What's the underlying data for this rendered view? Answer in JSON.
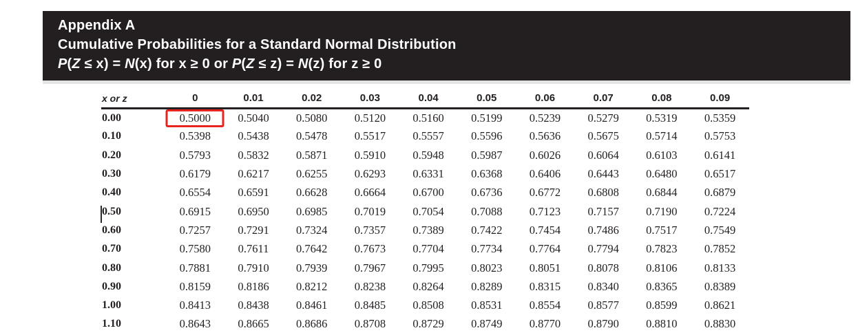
{
  "header": {
    "title": "Appendix A",
    "subtitle": "Cumulative Probabilities for a Standard Normal Distribution",
    "formula_segments": [
      {
        "text": "P",
        "italic": true
      },
      {
        "text": "(",
        "italic": false
      },
      {
        "text": "Z",
        "italic": true
      },
      {
        "text": " ≤ x) = ",
        "italic": false
      },
      {
        "text": "N",
        "italic": true
      },
      {
        "text": "(x) for x ≥ 0 or ",
        "italic": false
      },
      {
        "text": "P",
        "italic": true
      },
      {
        "text": "(",
        "italic": false
      },
      {
        "text": "Z",
        "italic": true
      },
      {
        "text": " ≤ z) = ",
        "italic": false
      },
      {
        "text": "N",
        "italic": true
      },
      {
        "text": "(z) for z ≥ 0",
        "italic": false
      }
    ]
  },
  "colors": {
    "banner_bg": "#231f20",
    "banner_text": "#ffffff",
    "highlight_red": "#e8251d",
    "rule": "#231f20"
  },
  "table": {
    "columns": [
      "x or z",
      "0",
      "0.01",
      "0.02",
      "0.03",
      "0.04",
      "0.05",
      "0.06",
      "0.07",
      "0.08",
      "0.09"
    ],
    "rows": [
      {
        "label": "0.00",
        "values": [
          "0.5000",
          "0.5040",
          "0.5080",
          "0.5120",
          "0.5160",
          "0.5199",
          "0.5239",
          "0.5279",
          "0.5319",
          "0.5359"
        ]
      },
      {
        "label": "0.10",
        "values": [
          "0.5398",
          "0.5438",
          "0.5478",
          "0.5517",
          "0.5557",
          "0.5596",
          "0.5636",
          "0.5675",
          "0.5714",
          "0.5753"
        ]
      },
      {
        "label": "0.20",
        "values": [
          "0.5793",
          "0.5832",
          "0.5871",
          "0.5910",
          "0.5948",
          "0.5987",
          "0.6026",
          "0.6064",
          "0.6103",
          "0.6141"
        ]
      },
      {
        "label": "0.30",
        "values": [
          "0.6179",
          "0.6217",
          "0.6255",
          "0.6293",
          "0.6331",
          "0.6368",
          "0.6406",
          "0.6443",
          "0.6480",
          "0.6517"
        ]
      },
      {
        "label": "0.40",
        "values": [
          "0.6554",
          "0.6591",
          "0.6628",
          "0.6664",
          "0.6700",
          "0.6736",
          "0.6772",
          "0.6808",
          "0.6844",
          "0.6879"
        ]
      },
      {
        "label": "0.50",
        "values": [
          "0.6915",
          "0.6950",
          "0.6985",
          "0.7019",
          "0.7054",
          "0.7088",
          "0.7123",
          "0.7157",
          "0.7190",
          "0.7224"
        ]
      },
      {
        "label": "0.60",
        "values": [
          "0.7257",
          "0.7291",
          "0.7324",
          "0.7357",
          "0.7389",
          "0.7422",
          "0.7454",
          "0.7486",
          "0.7517",
          "0.7549"
        ]
      },
      {
        "label": "0.70",
        "values": [
          "0.7580",
          "0.7611",
          "0.7642",
          "0.7673",
          "0.7704",
          "0.7734",
          "0.7764",
          "0.7794",
          "0.7823",
          "0.7852"
        ]
      },
      {
        "label": "0.80",
        "values": [
          "0.7881",
          "0.7910",
          "0.7939",
          "0.7967",
          "0.7995",
          "0.8023",
          "0.8051",
          "0.8078",
          "0.8106",
          "0.8133"
        ]
      },
      {
        "label": "0.90",
        "values": [
          "0.8159",
          "0.8186",
          "0.8212",
          "0.8238",
          "0.8264",
          "0.8289",
          "0.8315",
          "0.8340",
          "0.8365",
          "0.8389"
        ]
      },
      {
        "label": "1.00",
        "values": [
          "0.8413",
          "0.8438",
          "0.8461",
          "0.8485",
          "0.8508",
          "0.8531",
          "0.8554",
          "0.8577",
          "0.8599",
          "0.8621"
        ]
      },
      {
        "label": "1.10",
        "values": [
          "0.8643",
          "0.8665",
          "0.8686",
          "0.8708",
          "0.8729",
          "0.8749",
          "0.8770",
          "0.8790",
          "0.8810",
          "0.8830"
        ]
      }
    ],
    "highlight": {
      "row_index": 0,
      "col_index": 0,
      "value": "0.5000",
      "color": "#e8251d"
    }
  }
}
